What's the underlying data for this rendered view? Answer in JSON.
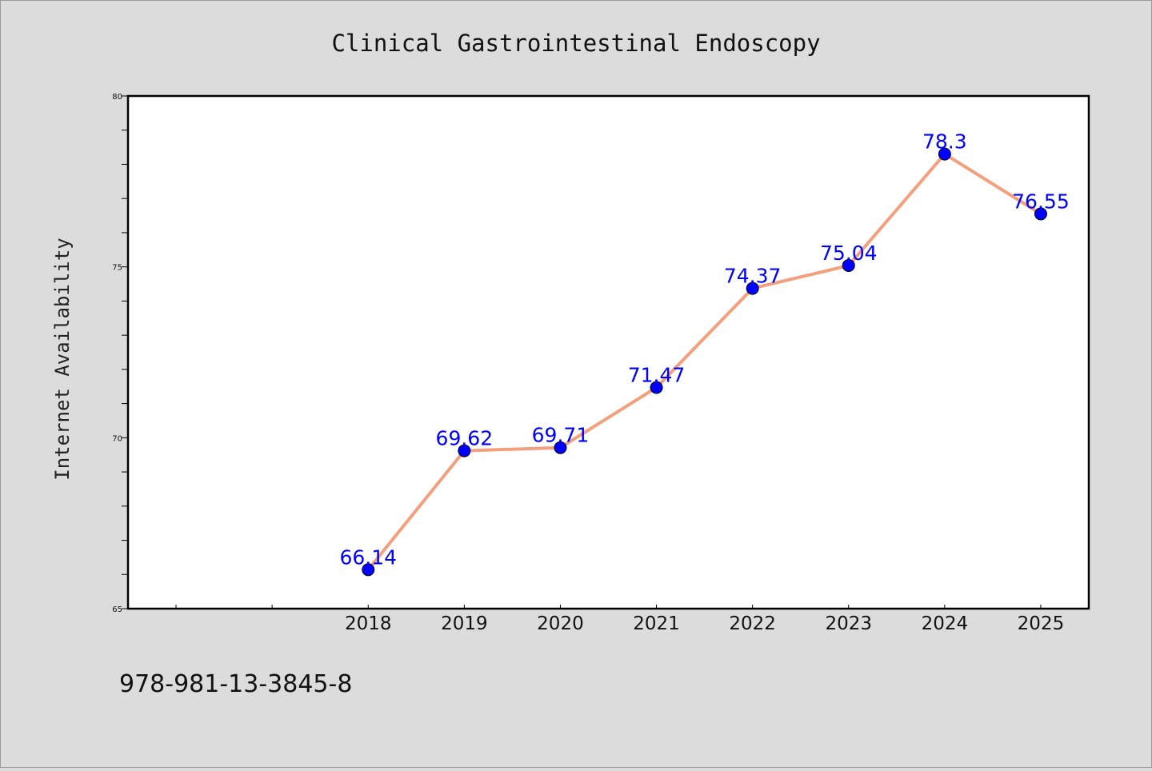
{
  "chart_data": {
    "type": "line",
    "title": "Clinical Gastrointestinal Endoscopy",
    "ylabel": "Internet Availability",
    "xlabel": "",
    "x": [
      "2018",
      "2019",
      "2020",
      "2021",
      "2022",
      "2023",
      "2024",
      "2025"
    ],
    "series": [
      {
        "values": [
          66.14,
          69.62,
          69.71,
          71.47,
          74.37,
          75.04,
          78.3,
          76.55
        ],
        "labels": [
          "66.14",
          "69.62",
          "69.71",
          "71.47",
          "74.37",
          "75.04",
          "78.3",
          "76.55"
        ]
      }
    ],
    "ylim": [
      65,
      80
    ],
    "yticks": [
      "65",
      "70",
      "75",
      "80"
    ],
    "grid": false,
    "line_color": "#f4a07e",
    "marker_color": "#0000ff",
    "label_color": "#0000ff"
  },
  "footer": {
    "isbn": "978-981-13-3845-8"
  },
  "colors": {
    "background": "#dcdcdc",
    "plot_background": "#ffffff"
  }
}
